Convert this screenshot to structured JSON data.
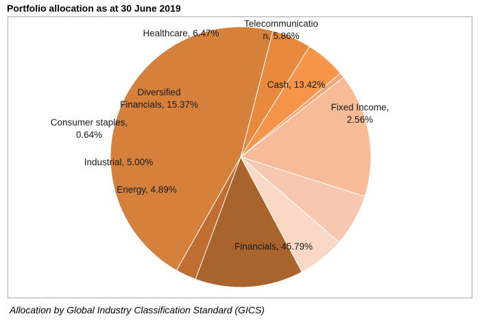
{
  "title": "Portfolio allocation as at 30 June 2019",
  "caption": "Allocation by Global Industry Classification Standard (GICS)",
  "chart_data": {
    "type": "pie",
    "start_category": "Financials",
    "slices": [
      {
        "label_lines": [
          "Financials, 45.79%"
        ],
        "value": 45.79,
        "color": "#d5813c"
      },
      {
        "label_lines": [
          "Energy, 4.89%"
        ],
        "value": 4.89,
        "color": "#e88a3e"
      },
      {
        "label_lines": [
          "Industrial, 5.00%"
        ],
        "value": 5.0,
        "color": "#f5954a"
      },
      {
        "label_lines": [
          "Consumer staples,",
          "0.64%"
        ],
        "value": 0.64,
        "color": "#f6a675"
      },
      {
        "label_lines": [
          "Diversified",
          "Financials, 15.37%"
        ],
        "value": 15.37,
        "color": "#f8bb98"
      },
      {
        "label_lines": [
          "Healthcare, 6.47%"
        ],
        "value": 6.47,
        "color": "#f7c8af"
      },
      {
        "label_lines": [
          "Telecommunicatio",
          "n, 5.86%"
        ],
        "value": 5.86,
        "color": "#fad8c6"
      },
      {
        "label_lines": [
          "Cash, 13.42%"
        ],
        "value": 13.42,
        "color": "#a9642d"
      },
      {
        "label_lines": [
          "Fixed Income,",
          "2.56%"
        ],
        "value": 2.56,
        "color": "#c06e31"
      }
    ]
  }
}
